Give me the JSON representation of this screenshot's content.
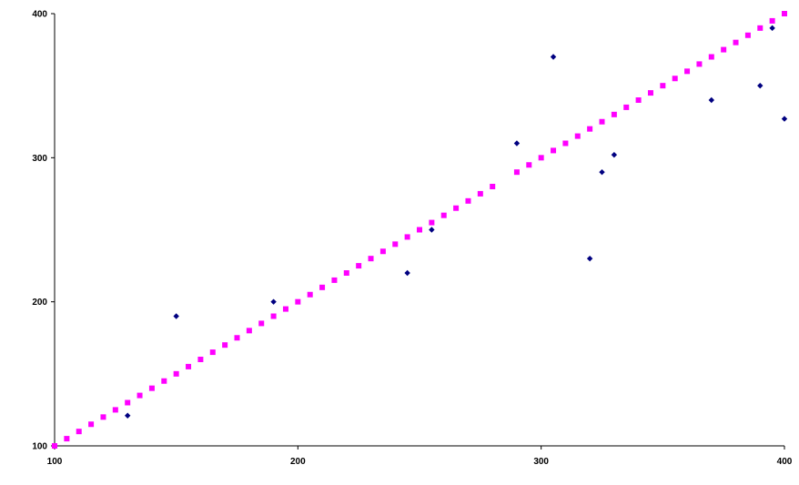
{
  "chart_data": {
    "type": "scatter",
    "title": "",
    "xlabel": "",
    "ylabel": "",
    "xlim": [
      100,
      400
    ],
    "ylim": [
      100,
      400
    ],
    "grid": false,
    "legend": "none",
    "x_ticks": [
      "100",
      "200",
      "300",
      "400"
    ],
    "y_ticks": [
      "100",
      "200",
      "300",
      "400"
    ],
    "series": [
      {
        "marker": "diamond",
        "color": "#000080",
        "points": [
          [
            130,
            121
          ],
          [
            150,
            190
          ],
          [
            190,
            200
          ],
          [
            245,
            220
          ],
          [
            255,
            250
          ],
          [
            290,
            310
          ],
          [
            305,
            370
          ],
          [
            320,
            230
          ],
          [
            325,
            290
          ],
          [
            330,
            302
          ],
          [
            370,
            340
          ],
          [
            390,
            350
          ],
          [
            395,
            390
          ],
          [
            400,
            327
          ]
        ]
      },
      {
        "marker": "square",
        "color": "#FF00FF",
        "x_start": 100,
        "x_end": 400,
        "x_step": 5,
        "y_equals_x": true,
        "gap_x": [
          285
        ]
      }
    ]
  }
}
